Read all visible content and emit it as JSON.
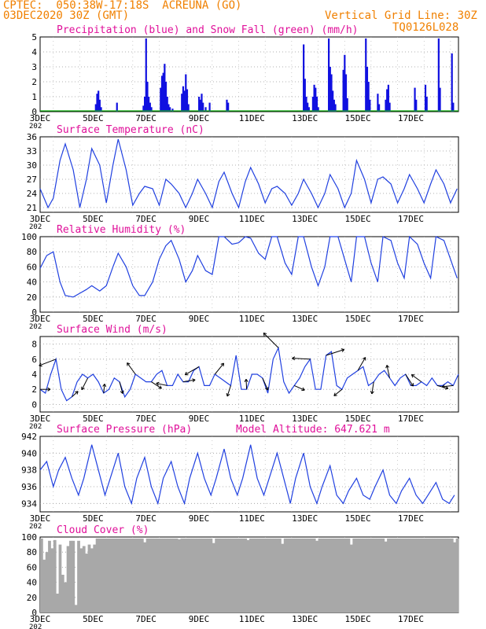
{
  "header": {
    "line1": "CPTEC:  050:38W-17:18S  ACREUNA (GO)",
    "line2": "03DEC2020 30Z (GMT)",
    "grid_note": "Vertical Grid Line: 30Z",
    "code": "TQ0126L028"
  },
  "colors": {
    "header": "#f08000",
    "panel_title": "#e0109a",
    "precip": "#1010e0",
    "snow": "#10b010",
    "temp": "#2040e0",
    "cloud": "#a8a8a8",
    "grid": "#888888"
  },
  "x_ticks": [
    "3DEC",
    "5DEC",
    "7DEC",
    "9DEC",
    "11DEC",
    "13DEC",
    "15DEC",
    "17DEC"
  ],
  "year_fragment": "202",
  "chart_data": [
    {
      "type": "bar",
      "id": "precip",
      "title": "Precipitation (blue) and Snow Fall (green) (mm/h)",
      "ylim": [
        0,
        5
      ],
      "yticks": [
        0,
        1,
        2,
        3,
        4,
        5
      ],
      "x_unit": "days since 3DEC",
      "bars": [
        [
          2.1,
          0.5
        ],
        [
          2.15,
          1.2
        ],
        [
          2.2,
          1.4
        ],
        [
          2.25,
          0.8
        ],
        [
          2.3,
          0.3
        ],
        [
          2.9,
          0.6
        ],
        [
          3.9,
          0.4
        ],
        [
          3.95,
          1.0
        ],
        [
          4.0,
          4.9
        ],
        [
          4.05,
          2.0
        ],
        [
          4.1,
          1.0
        ],
        [
          4.15,
          0.6
        ],
        [
          4.2,
          0.3
        ],
        [
          4.55,
          1.6
        ],
        [
          4.6,
          2.4
        ],
        [
          4.65,
          2.6
        ],
        [
          4.7,
          3.2
        ],
        [
          4.75,
          2.0
        ],
        [
          4.8,
          1.0
        ],
        [
          4.85,
          0.5
        ],
        [
          4.9,
          0.3
        ],
        [
          5.0,
          0.2
        ],
        [
          5.35,
          1.2
        ],
        [
          5.4,
          1.7
        ],
        [
          5.45,
          1.4
        ],
        [
          5.5,
          2.5
        ],
        [
          5.55,
          1.5
        ],
        [
          5.6,
          0.5
        ],
        [
          6.0,
          1.0
        ],
        [
          6.05,
          0.8
        ],
        [
          6.1,
          1.2
        ],
        [
          6.15,
          0.6
        ],
        [
          6.25,
          0.3
        ],
        [
          6.4,
          0.6
        ],
        [
          7.05,
          0.8
        ],
        [
          7.1,
          0.6
        ],
        [
          9.95,
          4.5
        ],
        [
          10.0,
          2.2
        ],
        [
          10.05,
          1.0
        ],
        [
          10.1,
          0.6
        ],
        [
          10.15,
          0.3
        ],
        [
          10.3,
          1.0
        ],
        [
          10.35,
          1.8
        ],
        [
          10.4,
          1.6
        ],
        [
          10.45,
          1.0
        ],
        [
          10.5,
          0.3
        ],
        [
          10.9,
          4.9
        ],
        [
          10.95,
          3.0
        ],
        [
          11.0,
          2.5
        ],
        [
          11.05,
          1.4
        ],
        [
          11.1,
          0.8
        ],
        [
          11.15,
          0.5
        ],
        [
          11.45,
          2.8
        ],
        [
          11.5,
          3.8
        ],
        [
          11.55,
          2.5
        ],
        [
          11.6,
          0.9
        ],
        [
          12.3,
          4.9
        ],
        [
          12.35,
          3.0
        ],
        [
          12.4,
          2.0
        ],
        [
          12.45,
          0.8
        ],
        [
          12.75,
          1.2
        ],
        [
          12.8,
          0.5
        ],
        [
          13.05,
          0.8
        ],
        [
          13.1,
          1.5
        ],
        [
          13.15,
          1.8
        ],
        [
          13.2,
          0.6
        ],
        [
          14.15,
          1.6
        ],
        [
          14.2,
          0.8
        ],
        [
          14.55,
          1.8
        ],
        [
          14.6,
          1.0
        ],
        [
          15.05,
          4.9
        ],
        [
          15.1,
          1.6
        ],
        [
          15.55,
          3.9
        ],
        [
          15.6,
          0.6
        ]
      ],
      "snow": "0 throughout"
    },
    {
      "type": "line",
      "id": "temp",
      "title": "Surface Temperature (nC)",
      "ylim": [
        20,
        36
      ],
      "yticks": [
        21,
        24,
        27,
        30,
        33,
        36
      ],
      "x_unit": "days since 3DEC",
      "x": [
        0,
        0.3,
        0.5,
        0.75,
        0.95,
        1.25,
        1.5,
        1.75,
        1.95,
        2.25,
        2.5,
        2.75,
        2.95,
        3.25,
        3.5,
        3.75,
        3.95,
        4.25,
        4.5,
        4.75,
        4.95,
        5.25,
        5.5,
        5.75,
        5.95,
        6.25,
        6.5,
        6.75,
        6.95,
        7.25,
        7.5,
        7.75,
        7.95,
        8.25,
        8.5,
        8.75,
        8.95,
        9.25,
        9.5,
        9.75,
        9.95,
        10.25,
        10.5,
        10.75,
        10.95,
        11.25,
        11.5,
        11.75,
        11.95,
        12.25,
        12.5,
        12.75,
        12.95,
        13.25,
        13.5,
        13.75,
        13.95,
        14.25,
        14.5,
        14.75,
        14.95,
        15.25,
        15.5,
        15.75,
        15.95,
        16.25,
        16.5,
        16.75,
        16.95,
        17.25,
        17.5,
        17.75,
        17.95,
        18.25,
        18.5,
        18.75,
        18.95,
        19.25
      ],
      "y": [
        25,
        21,
        23,
        31,
        34.5,
        29,
        21,
        27,
        33.5,
        30,
        22,
        30,
        35.5,
        29,
        21.5,
        24,
        25.5,
        25,
        21.5,
        27,
        26,
        24,
        21,
        24,
        27,
        24,
        21,
        26.5,
        28.5,
        24,
        21,
        26.5,
        29.5,
        26,
        22,
        25,
        25.5,
        24,
        21.5,
        24,
        27,
        24,
        21,
        24,
        28,
        25,
        21,
        24,
        31,
        27,
        22,
        27,
        27.5,
        26,
        22,
        25,
        28,
        25,
        22,
        26,
        29,
        26,
        22,
        25,
        28,
        26,
        22,
        24.5,
        28,
        25.5,
        22,
        25,
        28.5,
        25.5,
        22,
        24.5,
        30,
        26.5
      ],
      "note": "line approximates diurnal cycles"
    },
    {
      "type": "line",
      "id": "rh",
      "title": "Relative Humidity (%)",
      "ylim": [
        0,
        100
      ],
      "yticks": [
        0,
        20,
        40,
        60,
        80,
        100
      ],
      "x_unit": "days since 3DEC",
      "x": [
        0,
        0.25,
        0.5,
        0.75,
        0.95,
        1.25,
        1.5,
        1.75,
        1.95,
        2.25,
        2.5,
        2.75,
        2.95,
        3.25,
        3.5,
        3.75,
        3.95,
        4.25,
        4.5,
        4.75,
        4.95,
        5.25,
        5.5,
        5.75,
        5.95,
        6.25,
        6.5,
        6.75,
        6.95,
        7.25,
        7.5,
        7.75,
        7.95,
        8.25,
        8.5,
        8.75,
        8.95,
        9.25,
        9.5,
        9.75,
        9.95,
        10.25,
        10.5,
        10.75,
        10.95,
        11.25,
        11.5,
        11.75,
        11.95,
        12.25,
        12.5,
        12.75,
        12.95,
        13.25,
        13.5,
        13.75,
        13.95,
        14.25,
        14.5,
        14.75,
        14.95,
        15.25,
        15.5,
        15.75,
        15.95,
        16.25,
        16.5,
        16.75,
        16.95,
        17.25,
        17.5,
        17.75,
        17.95,
        18.25,
        18.5,
        18.75,
        18.95,
        19.25
      ],
      "y": [
        58,
        75,
        80,
        40,
        22,
        20,
        25,
        30,
        35,
        28,
        35,
        60,
        78,
        60,
        35,
        22,
        22,
        40,
        70,
        88,
        95,
        70,
        40,
        55,
        75,
        55,
        50,
        100,
        100,
        90,
        92,
        100,
        98,
        78,
        70,
        100,
        100,
        65,
        50,
        100,
        100,
        60,
        35,
        60,
        100,
        100,
        70,
        40,
        100,
        100,
        65,
        40,
        100,
        95,
        65,
        45,
        100,
        90,
        65,
        45,
        100,
        95,
        70,
        45,
        90,
        85,
        68,
        48,
        95,
        90,
        70,
        50,
        100,
        90,
        65,
        45,
        100,
        80
      ],
      "note": "line approximates diurnal cycles"
    },
    {
      "type": "line",
      "id": "wind",
      "title": "Surface Wind (m/s)",
      "ylim": [
        -1,
        9
      ],
      "yticks": [
        0,
        2,
        4,
        6,
        8
      ],
      "x_unit": "days since 3DEC",
      "x": [
        0,
        0.2,
        0.4,
        0.6,
        0.8,
        1.0,
        1.2,
        1.4,
        1.6,
        1.8,
        2.0,
        2.2,
        2.4,
        2.6,
        2.8,
        3.0,
        3.2,
        3.4,
        3.6,
        3.8,
        4.0,
        4.2,
        4.4,
        4.6,
        4.8,
        5.0,
        5.2,
        5.4,
        5.6,
        5.8,
        6.0,
        6.2,
        6.4,
        6.6,
        6.8,
        7.0,
        7.2,
        7.4,
        7.6,
        7.8,
        8.0,
        8.2,
        8.4,
        8.6,
        8.8,
        9.0,
        9.2,
        9.4,
        9.6,
        9.8,
        10.0,
        10.2,
        10.4,
        10.6,
        10.8,
        11.0,
        11.2,
        11.4,
        11.6,
        11.8,
        12.0,
        12.2,
        12.4,
        12.6,
        12.8,
        13.0,
        13.2,
        13.4,
        13.6,
        13.8,
        14.0,
        14.2,
        14.4,
        14.6,
        14.8,
        15.0,
        15.2,
        15.4,
        15.6,
        15.8,
        16.0,
        16.2,
        16.4,
        16.6,
        16.8,
        17.0,
        17.2,
        17.4,
        17.6,
        17.8,
        18.0,
        18.2,
        18.4,
        18.6,
        18.8,
        19.0,
        19.2
      ],
      "y": [
        2,
        1.5,
        4,
        6,
        2,
        0.5,
        1,
        3,
        4,
        3.5,
        4,
        3,
        1.5,
        2,
        3.5,
        3,
        1,
        2,
        4,
        3.5,
        3,
        3,
        4,
        4.5,
        2.5,
        2.5,
        4,
        3,
        3,
        4.5,
        5,
        2.5,
        2.5,
        4,
        3.5,
        3,
        2.5,
        6.5,
        2,
        2,
        4,
        4,
        3.5,
        1.5,
        6,
        7.5,
        3,
        1.5,
        2.5,
        3.5,
        5,
        6,
        2,
        2,
        6.5,
        7,
        2.5,
        2,
        3.5,
        4,
        4.5,
        5,
        2.5,
        3,
        4,
        4.5,
        3.5,
        2.5,
        3.5,
        4,
        2.5,
        2.5,
        3,
        2.5,
        3.5,
        2.5,
        2.5,
        3,
        2.5,
        4,
        2.5,
        2.5,
        3,
        3,
        2.5,
        4,
        2.5,
        2,
        4,
        3,
        1.5,
        3.5,
        2,
        3.5,
        0.5,
        2.5,
        2
      ],
      "arrows_note": "wind direction vectors shown as black arrows at 6-hourly intervals"
    },
    {
      "type": "line",
      "id": "pressure",
      "title": "Surface Pressure (hPa)",
      "model_altitude": "Model Altitude: 647.621  m",
      "ylim": [
        933,
        942
      ],
      "yticks": [
        934,
        936,
        938,
        940,
        942
      ],
      "x_unit": "days since 3DEC",
      "x": [
        0,
        0.25,
        0.5,
        0.7,
        0.95,
        1.2,
        1.45,
        1.65,
        1.95,
        2.2,
        2.45,
        2.65,
        2.95,
        3.2,
        3.45,
        3.65,
        3.95,
        4.2,
        4.45,
        4.65,
        4.95,
        5.2,
        5.45,
        5.65,
        5.95,
        6.2,
        6.45,
        6.65,
        6.95,
        7.2,
        7.45,
        7.65,
        7.95,
        8.2,
        8.45,
        8.65,
        8.95,
        9.2,
        9.45,
        9.65,
        9.95,
        10.2,
        10.45,
        10.65,
        10.95,
        11.2,
        11.45,
        11.65,
        11.95,
        12.2,
        12.45,
        12.65,
        12.95,
        13.2,
        13.45,
        13.65,
        13.95,
        14.2,
        14.45,
        14.65,
        14.95,
        15.2,
        15.45,
        15.65,
        15.95,
        16.2,
        16.45,
        16.65,
        16.95,
        17.2,
        17.45,
        17.65,
        17.95,
        18.2,
        18.45,
        18.65,
        18.95,
        19.2,
        19.45,
        19.65,
        19.95,
        20.2
      ],
      "y": [
        938,
        939,
        936,
        938,
        939.5,
        937,
        935,
        937,
        941,
        938,
        935,
        937,
        940,
        936,
        934,
        937,
        939.5,
        936,
        934,
        937,
        939,
        936,
        934,
        937,
        940,
        937,
        935,
        937,
        940.5,
        937,
        935,
        937,
        941,
        937,
        935,
        937,
        940,
        937,
        934,
        937,
        940,
        936,
        934,
        936,
        938.5,
        935,
        934,
        935.5,
        937,
        935,
        934.5,
        936,
        938,
        935,
        934,
        935.5,
        937,
        935,
        934,
        935,
        936.5,
        934.5,
        934,
        935,
        936.5,
        934.5,
        934,
        935,
        936,
        934.5,
        933.5,
        935,
        936,
        934.5,
        934,
        935,
        936.5,
        935,
        934,
        935,
        936.5,
        934
      ],
      "note": "line approximates semi-diurnal oscillation"
    },
    {
      "type": "bar",
      "id": "cloud",
      "title": "Cloud Cover (%)",
      "ylim": [
        0,
        100
      ],
      "yticks": [
        0,
        20,
        40,
        60,
        80,
        100
      ],
      "x_unit": "days since 3DEC",
      "bars_note": "dense gray bars, mostly 90-100%; lower values at start of period",
      "series": [
        [
          0.1,
          70
        ],
        [
          0.2,
          80
        ],
        [
          0.3,
          95
        ],
        [
          0.4,
          85
        ],
        [
          0.5,
          96
        ],
        [
          0.6,
          25
        ],
        [
          0.7,
          90
        ],
        [
          0.8,
          50
        ],
        [
          0.9,
          40
        ],
        [
          1.0,
          88
        ],
        [
          1.1,
          95
        ],
        [
          1.2,
          95
        ],
        [
          1.3,
          10
        ],
        [
          1.4,
          95
        ],
        [
          1.5,
          85
        ],
        [
          1.6,
          88
        ],
        [
          1.7,
          78
        ],
        [
          1.8,
          90
        ],
        [
          1.9,
          85
        ],
        [
          2.0,
          90
        ]
      ]
    }
  ]
}
